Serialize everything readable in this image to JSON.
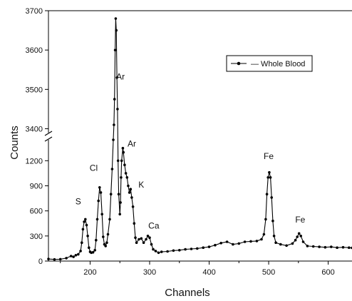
{
  "chart_data": {
    "type": "line",
    "xlabel": "Channels",
    "ylabel": "Counts",
    "xlim": [
      130,
      640
    ],
    "ylim_lower": [
      0,
      1450
    ],
    "ylim_upper": [
      3390,
      3700
    ],
    "axis_break": [
      1450,
      3390
    ],
    "x_ticks": [
      200,
      300,
      400,
      500,
      600
    ],
    "y_ticks_lower": [
      0,
      300,
      600,
      900,
      1200
    ],
    "y_ticks_upper": [
      3400,
      3500,
      3600,
      3700
    ],
    "legend": {
      "label": "Whole Blood",
      "position": "top-right"
    },
    "annotations": [
      {
        "text": "S",
        "x": 180,
        "y": 680
      },
      {
        "text": "Cl",
        "x": 206,
        "y": 1080
      },
      {
        "text": "Ar",
        "x": 251,
        "y": 3525
      },
      {
        "text": "Ar",
        "x": 270,
        "y": 1370
      },
      {
        "text": "K",
        "x": 286,
        "y": 880
      },
      {
        "text": "Ca",
        "x": 307,
        "y": 390
      },
      {
        "text": "Fe",
        "x": 500,
        "y": 1220
      },
      {
        "text": "Fe",
        "x": 553,
        "y": 460
      }
    ],
    "series": [
      {
        "values": [
          [
            130,
            25
          ],
          [
            140,
            20
          ],
          [
            150,
            22
          ],
          [
            160,
            35
          ],
          [
            168,
            60
          ],
          [
            172,
            50
          ],
          [
            176,
            70
          ],
          [
            180,
            80
          ],
          [
            184,
            120
          ],
          [
            186,
            220
          ],
          [
            188,
            380
          ],
          [
            190,
            470
          ],
          [
            192,
            500
          ],
          [
            194,
            430
          ],
          [
            196,
            300
          ],
          [
            198,
            160
          ],
          [
            200,
            110
          ],
          [
            202,
            100
          ],
          [
            205,
            105
          ],
          [
            208,
            130
          ],
          [
            210,
            250
          ],
          [
            212,
            500
          ],
          [
            214,
            720
          ],
          [
            216,
            880
          ],
          [
            218,
            820
          ],
          [
            220,
            560
          ],
          [
            222,
            290
          ],
          [
            224,
            200
          ],
          [
            226,
            180
          ],
          [
            228,
            220
          ],
          [
            230,
            320
          ],
          [
            233,
            500
          ],
          [
            235,
            800
          ],
          [
            237,
            1100
          ],
          [
            239,
            1450
          ],
          [
            240,
            3410
          ],
          [
            241,
            3475
          ],
          [
            242,
            3600
          ],
          [
            243,
            3680
          ],
          [
            244,
            3650
          ],
          [
            245,
            3530
          ],
          [
            246,
            3450
          ],
          [
            247,
            1200
          ],
          [
            248,
            800
          ],
          [
            250,
            560
          ],
          [
            251,
            700
          ],
          [
            252,
            1000
          ],
          [
            253,
            1200
          ],
          [
            255,
            1350
          ],
          [
            256,
            1300
          ],
          [
            258,
            1150
          ],
          [
            260,
            1050
          ],
          [
            262,
            1000
          ],
          [
            264,
            900
          ],
          [
            266,
            820
          ],
          [
            268,
            860
          ],
          [
            270,
            760
          ],
          [
            272,
            650
          ],
          [
            274,
            450
          ],
          [
            276,
            280
          ],
          [
            278,
            220
          ],
          [
            282,
            260
          ],
          [
            286,
            270
          ],
          [
            290,
            220
          ],
          [
            294,
            260
          ],
          [
            297,
            300
          ],
          [
            300,
            280
          ],
          [
            303,
            200
          ],
          [
            306,
            140
          ],
          [
            310,
            120
          ],
          [
            315,
            100
          ],
          [
            320,
            110
          ],
          [
            330,
            115
          ],
          [
            340,
            125
          ],
          [
            350,
            130
          ],
          [
            360,
            140
          ],
          [
            370,
            145
          ],
          [
            380,
            150
          ],
          [
            390,
            160
          ],
          [
            400,
            170
          ],
          [
            410,
            190
          ],
          [
            420,
            215
          ],
          [
            430,
            230
          ],
          [
            440,
            200
          ],
          [
            450,
            210
          ],
          [
            460,
            230
          ],
          [
            470,
            235
          ],
          [
            480,
            240
          ],
          [
            488,
            260
          ],
          [
            492,
            320
          ],
          [
            495,
            500
          ],
          [
            497,
            800
          ],
          [
            499,
            1000
          ],
          [
            501,
            1060
          ],
          [
            503,
            1000
          ],
          [
            505,
            760
          ],
          [
            507,
            480
          ],
          [
            509,
            300
          ],
          [
            512,
            220
          ],
          [
            520,
            200
          ],
          [
            530,
            185
          ],
          [
            540,
            210
          ],
          [
            545,
            250
          ],
          [
            548,
            290
          ],
          [
            551,
            330
          ],
          [
            554,
            300
          ],
          [
            558,
            230
          ],
          [
            565,
            180
          ],
          [
            575,
            175
          ],
          [
            585,
            170
          ],
          [
            595,
            165
          ],
          [
            605,
            170
          ],
          [
            615,
            160
          ],
          [
            625,
            165
          ],
          [
            635,
            160
          ],
          [
            640,
            158
          ]
        ]
      }
    ]
  }
}
